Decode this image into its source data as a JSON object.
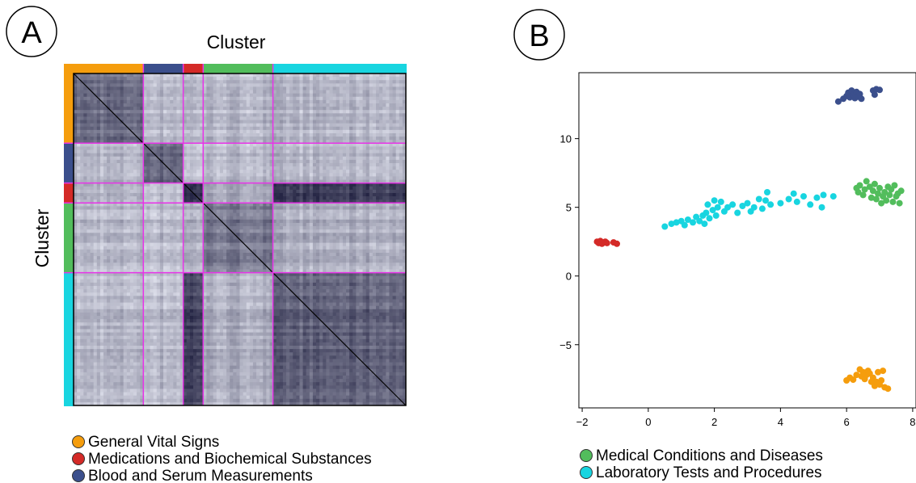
{
  "panels": {
    "a": {
      "letter": "A",
      "axis_label_top": "Cluster",
      "axis_label_left": "Cluster"
    },
    "b": {
      "letter": "B"
    }
  },
  "legend_a": [
    {
      "label": "General Vital Signs",
      "color": "#f59d0d"
    },
    {
      "label": "Medications and Biochemical Substances",
      "color": "#d42a27"
    },
    {
      "label": "Blood and Serum Measurements",
      "color": "#3b4f8c"
    }
  ],
  "legend_b": [
    {
      "label": "Medical Conditions and Diseases",
      "color": "#52bd5c"
    },
    {
      "label": "Laboratory Tests and Procedures",
      "color": "#18d5e0"
    }
  ],
  "chart_data": [
    {
      "type": "heatmap",
      "title": "",
      "xlabel": "Cluster",
      "ylabel": "Cluster",
      "cluster_order": [
        {
          "name": "General Vital Signs",
          "color": "#f59d0d",
          "size": 21
        },
        {
          "name": "Blood and Serum Measurements",
          "color": "#3b4f8c",
          "size": 12
        },
        {
          "name": "Medications and Biochemical Substances",
          "color": "#d42a27",
          "size": 6
        },
        {
          "name": "Medical Conditions and Diseases",
          "color": "#52bd5c",
          "size": 21
        },
        {
          "name": "Laboratory Tests and Procedures",
          "color": "#18d5e0",
          "size": 40
        }
      ],
      "block_similarity": [
        [
          0.6,
          0.25,
          0.25,
          0.25,
          0.25
        ],
        [
          0.25,
          0.65,
          0.2,
          0.25,
          0.25
        ],
        [
          0.25,
          0.2,
          0.85,
          0.3,
          0.8
        ],
        [
          0.25,
          0.25,
          0.3,
          0.55,
          0.3
        ],
        [
          0.25,
          0.25,
          0.8,
          0.3,
          0.65
        ]
      ],
      "cell_colors": {
        "low": "#ffffff",
        "high": "#1a1a3a"
      },
      "cluster_boundary_color": "#e833e8",
      "diagonal": 1.0
    },
    {
      "type": "scatter",
      "title": "",
      "xlabel": "",
      "ylabel": "",
      "xlim": [
        -2.1,
        8.1
      ],
      "ylim": [
        -9.6,
        14.8
      ],
      "xticks": [
        -2,
        0,
        2,
        4,
        6,
        8
      ],
      "yticks": [
        -5,
        0,
        5,
        10
      ],
      "grid": false,
      "series": [
        {
          "name": "Blood and Serum Measurements",
          "color": "#3b4f8c",
          "points": [
            [
              5.75,
              12.7
            ],
            [
              5.9,
              12.9
            ],
            [
              6.0,
              13.1
            ],
            [
              6.05,
              13.35
            ],
            [
              6.1,
              13.0
            ],
            [
              6.15,
              13.5
            ],
            [
              6.2,
              13.2
            ],
            [
              6.25,
              12.95
            ],
            [
              6.3,
              13.4
            ],
            [
              6.35,
              13.05
            ],
            [
              6.4,
              13.25
            ],
            [
              6.45,
              12.9
            ],
            [
              6.8,
              13.5
            ],
            [
              6.85,
              13.2
            ],
            [
              6.9,
              13.6
            ],
            [
              7.0,
              13.55
            ]
          ]
        },
        {
          "name": "Medications and Biochemical Substances",
          "color": "#d42a27",
          "points": [
            [
              -1.55,
              2.5
            ],
            [
              -1.5,
              2.4
            ],
            [
              -1.45,
              2.55
            ],
            [
              -1.4,
              2.35
            ],
            [
              -1.35,
              2.45
            ],
            [
              -1.3,
              2.5
            ],
            [
              -1.25,
              2.4
            ],
            [
              -1.05,
              2.45
            ],
            [
              -0.95,
              2.35
            ]
          ]
        },
        {
          "name": "General Vital Signs",
          "color": "#f59d0d",
          "points": [
            [
              6.0,
              -7.6
            ],
            [
              6.1,
              -7.4
            ],
            [
              6.2,
              -7.55
            ],
            [
              6.3,
              -7.2
            ],
            [
              6.4,
              -6.8
            ],
            [
              6.45,
              -7.3
            ],
            [
              6.5,
              -7.0
            ],
            [
              6.55,
              -7.5
            ],
            [
              6.6,
              -7.2
            ],
            [
              6.65,
              -6.9
            ],
            [
              6.7,
              -7.1
            ],
            [
              6.75,
              -7.7
            ],
            [
              6.8,
              -7.4
            ],
            [
              6.85,
              -8.0
            ],
            [
              6.9,
              -7.7
            ],
            [
              6.95,
              -7.0
            ],
            [
              7.0,
              -7.9
            ],
            [
              7.05,
              -7.6
            ],
            [
              7.1,
              -6.9
            ],
            [
              7.15,
              -8.1
            ],
            [
              7.25,
              -8.2
            ]
          ]
        },
        {
          "name": "Medical Conditions and Diseases",
          "color": "#52bd5c",
          "points": [
            [
              6.3,
              6.4
            ],
            [
              6.35,
              6.1
            ],
            [
              6.4,
              6.6
            ],
            [
              6.5,
              5.9
            ],
            [
              6.55,
              6.3
            ],
            [
              6.6,
              6.9
            ],
            [
              6.7,
              6.5
            ],
            [
              6.75,
              5.7
            ],
            [
              6.8,
              6.2
            ],
            [
              6.85,
              6.7
            ],
            [
              6.9,
              5.6
            ],
            [
              6.95,
              6.0
            ],
            [
              7.0,
              6.4
            ],
            [
              7.05,
              5.3
            ],
            [
              7.1,
              5.8
            ],
            [
              7.15,
              6.1
            ],
            [
              7.2,
              5.5
            ],
            [
              7.25,
              6.5
            ],
            [
              7.3,
              5.9
            ],
            [
              7.35,
              6.3
            ],
            [
              7.4,
              5.4
            ],
            [
              7.45,
              6.6
            ],
            [
              7.5,
              5.8
            ],
            [
              7.55,
              6.0
            ],
            [
              7.6,
              5.3
            ],
            [
              7.65,
              6.2
            ]
          ]
        },
        {
          "name": "Laboratory Tests and Procedures",
          "color": "#18d5e0",
          "points": [
            [
              0.5,
              3.6
            ],
            [
              0.7,
              3.8
            ],
            [
              0.85,
              3.9
            ],
            [
              1.0,
              4.0
            ],
            [
              1.1,
              3.7
            ],
            [
              1.2,
              4.1
            ],
            [
              1.35,
              3.9
            ],
            [
              1.45,
              4.3
            ],
            [
              1.55,
              4.0
            ],
            [
              1.65,
              4.4
            ],
            [
              1.7,
              3.8
            ],
            [
              1.75,
              4.6
            ],
            [
              1.8,
              5.2
            ],
            [
              1.85,
              4.2
            ],
            [
              1.95,
              4.8
            ],
            [
              2.0,
              5.5
            ],
            [
              2.05,
              4.4
            ],
            [
              2.1,
              5.0
            ],
            [
              2.2,
              5.4
            ],
            [
              2.3,
              4.7
            ],
            [
              2.4,
              5.0
            ],
            [
              2.55,
              5.2
            ],
            [
              2.7,
              4.6
            ],
            [
              2.85,
              5.1
            ],
            [
              3.0,
              5.3
            ],
            [
              3.1,
              4.7
            ],
            [
              3.2,
              5.0
            ],
            [
              3.35,
              5.6
            ],
            [
              3.45,
              4.9
            ],
            [
              3.55,
              5.5
            ],
            [
              3.6,
              6.1
            ],
            [
              3.7,
              5.2
            ],
            [
              4.0,
              5.3
            ],
            [
              4.25,
              5.6
            ],
            [
              4.4,
              6.0
            ],
            [
              4.5,
              5.4
            ],
            [
              4.7,
              5.8
            ],
            [
              4.9,
              5.2
            ],
            [
              5.1,
              5.7
            ],
            [
              5.25,
              5.0
            ],
            [
              5.3,
              5.9
            ],
            [
              5.6,
              5.8
            ]
          ]
        }
      ]
    }
  ]
}
